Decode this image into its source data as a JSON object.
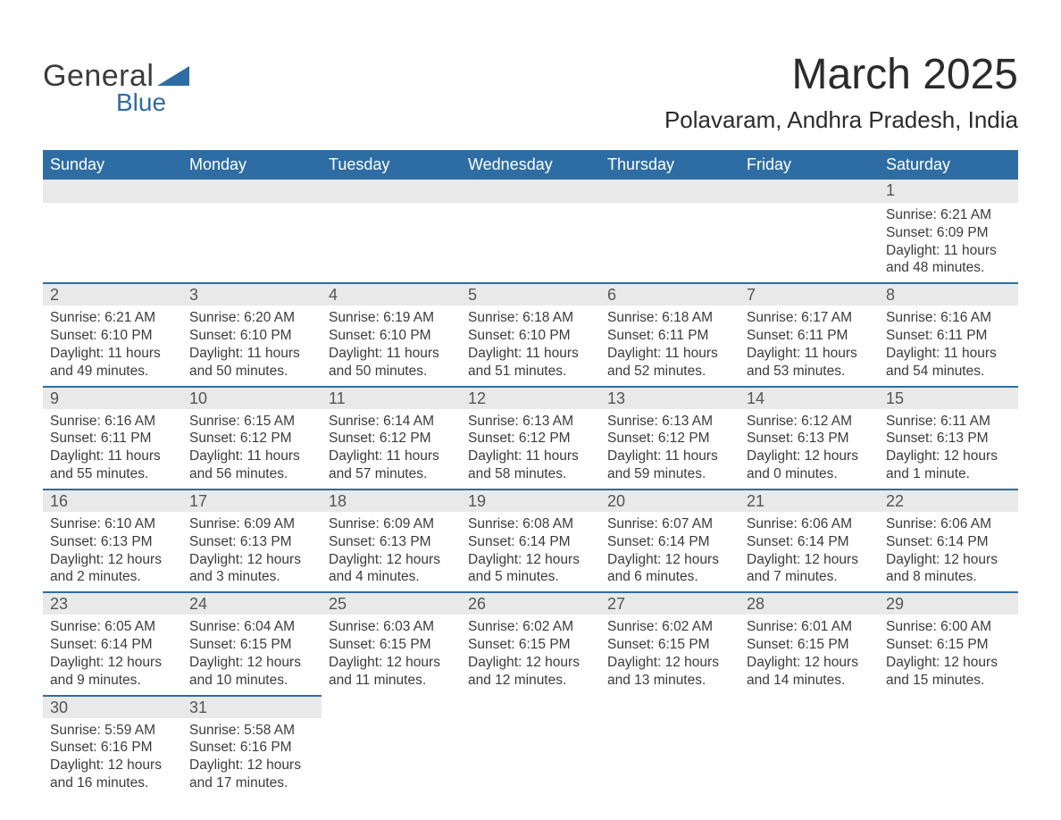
{
  "logo": {
    "general": "General",
    "blue": "Blue",
    "accent_color": "#2e6da4"
  },
  "title": {
    "month": "March 2025",
    "location": "Polavaram, Andhra Pradesh, India"
  },
  "calendar": {
    "header_bg": "#2e6da4",
    "header_fg": "#ffffff",
    "band_bg": "#e9e9e9",
    "band_border": "#2e6da4",
    "text_color": "#3b3b3b",
    "dow": [
      "Sunday",
      "Monday",
      "Tuesday",
      "Wednesday",
      "Thursday",
      "Friday",
      "Saturday"
    ],
    "labels": {
      "sunrise": "Sunrise: ",
      "sunset": "Sunset: ",
      "daylight": "Daylight: "
    },
    "weeks": [
      [
        null,
        null,
        null,
        null,
        null,
        null,
        {
          "n": "1",
          "sr": "6:21 AM",
          "ss": "6:09 PM",
          "dl": "11 hours and 48 minutes."
        }
      ],
      [
        {
          "n": "2",
          "sr": "6:21 AM",
          "ss": "6:10 PM",
          "dl": "11 hours and 49 minutes."
        },
        {
          "n": "3",
          "sr": "6:20 AM",
          "ss": "6:10 PM",
          "dl": "11 hours and 50 minutes."
        },
        {
          "n": "4",
          "sr": "6:19 AM",
          "ss": "6:10 PM",
          "dl": "11 hours and 50 minutes."
        },
        {
          "n": "5",
          "sr": "6:18 AM",
          "ss": "6:10 PM",
          "dl": "11 hours and 51 minutes."
        },
        {
          "n": "6",
          "sr": "6:18 AM",
          "ss": "6:11 PM",
          "dl": "11 hours and 52 minutes."
        },
        {
          "n": "7",
          "sr": "6:17 AM",
          "ss": "6:11 PM",
          "dl": "11 hours and 53 minutes."
        },
        {
          "n": "8",
          "sr": "6:16 AM",
          "ss": "6:11 PM",
          "dl": "11 hours and 54 minutes."
        }
      ],
      [
        {
          "n": "9",
          "sr": "6:16 AM",
          "ss": "6:11 PM",
          "dl": "11 hours and 55 minutes."
        },
        {
          "n": "10",
          "sr": "6:15 AM",
          "ss": "6:12 PM",
          "dl": "11 hours and 56 minutes."
        },
        {
          "n": "11",
          "sr": "6:14 AM",
          "ss": "6:12 PM",
          "dl": "11 hours and 57 minutes."
        },
        {
          "n": "12",
          "sr": "6:13 AM",
          "ss": "6:12 PM",
          "dl": "11 hours and 58 minutes."
        },
        {
          "n": "13",
          "sr": "6:13 AM",
          "ss": "6:12 PM",
          "dl": "11 hours and 59 minutes."
        },
        {
          "n": "14",
          "sr": "6:12 AM",
          "ss": "6:13 PM",
          "dl": "12 hours and 0 minutes."
        },
        {
          "n": "15",
          "sr": "6:11 AM",
          "ss": "6:13 PM",
          "dl": "12 hours and 1 minute."
        }
      ],
      [
        {
          "n": "16",
          "sr": "6:10 AM",
          "ss": "6:13 PM",
          "dl": "12 hours and 2 minutes."
        },
        {
          "n": "17",
          "sr": "6:09 AM",
          "ss": "6:13 PM",
          "dl": "12 hours and 3 minutes."
        },
        {
          "n": "18",
          "sr": "6:09 AM",
          "ss": "6:13 PM",
          "dl": "12 hours and 4 minutes."
        },
        {
          "n": "19",
          "sr": "6:08 AM",
          "ss": "6:14 PM",
          "dl": "12 hours and 5 minutes."
        },
        {
          "n": "20",
          "sr": "6:07 AM",
          "ss": "6:14 PM",
          "dl": "12 hours and 6 minutes."
        },
        {
          "n": "21",
          "sr": "6:06 AM",
          "ss": "6:14 PM",
          "dl": "12 hours and 7 minutes."
        },
        {
          "n": "22",
          "sr": "6:06 AM",
          "ss": "6:14 PM",
          "dl": "12 hours and 8 minutes."
        }
      ],
      [
        {
          "n": "23",
          "sr": "6:05 AM",
          "ss": "6:14 PM",
          "dl": "12 hours and 9 minutes."
        },
        {
          "n": "24",
          "sr": "6:04 AM",
          "ss": "6:15 PM",
          "dl": "12 hours and 10 minutes."
        },
        {
          "n": "25",
          "sr": "6:03 AM",
          "ss": "6:15 PM",
          "dl": "12 hours and 11 minutes."
        },
        {
          "n": "26",
          "sr": "6:02 AM",
          "ss": "6:15 PM",
          "dl": "12 hours and 12 minutes."
        },
        {
          "n": "27",
          "sr": "6:02 AM",
          "ss": "6:15 PM",
          "dl": "12 hours and 13 minutes."
        },
        {
          "n": "28",
          "sr": "6:01 AM",
          "ss": "6:15 PM",
          "dl": "12 hours and 14 minutes."
        },
        {
          "n": "29",
          "sr": "6:00 AM",
          "ss": "6:15 PM",
          "dl": "12 hours and 15 minutes."
        }
      ],
      [
        {
          "n": "30",
          "sr": "5:59 AM",
          "ss": "6:16 PM",
          "dl": "12 hours and 16 minutes."
        },
        {
          "n": "31",
          "sr": "5:58 AM",
          "ss": "6:16 PM",
          "dl": "12 hours and 17 minutes."
        },
        null,
        null,
        null,
        null,
        null
      ]
    ]
  }
}
